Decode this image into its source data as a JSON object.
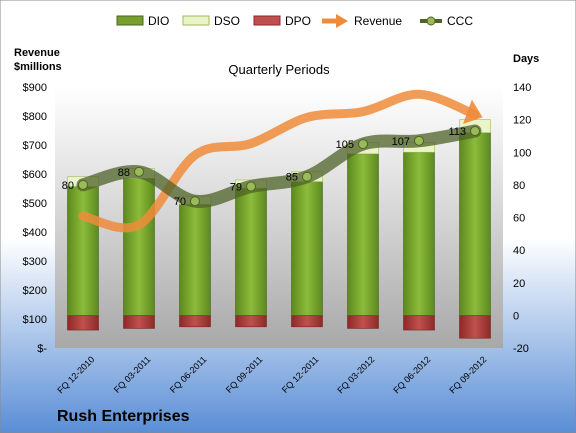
{
  "chart_data": {
    "type": "bar",
    "title": "Quarterly Periods",
    "company": "Rush Enterprises",
    "categories": [
      "FQ 12-2010",
      "FQ 03-2011",
      "FQ 06-2011",
      "FQ 09-2011",
      "FQ 12-2011",
      "FQ 03-2012",
      "FQ 06-2012",
      "FQ 09-2012"
    ],
    "left_axis": {
      "label_line1": "Revenue",
      "label_line2": "$millions",
      "ylim": [
        -20,
        140
      ],
      "ticks": [
        "$-",
        "$100",
        "$200",
        "$300",
        "$400",
        "$500",
        "$600",
        "$700",
        "$800",
        "$900"
      ]
    },
    "right_axis": {
      "label": "Days",
      "ylim": [
        -20,
        140
      ],
      "ticks": [
        -20,
        0,
        20,
        40,
        60,
        80,
        100,
        120,
        140
      ]
    },
    "series": [
      {
        "name": "DIO",
        "kind": "bar",
        "axis": "days",
        "color": "#76a02c",
        "values": [
          79,
          84,
          68,
          78,
          82,
          99,
          100,
          112
        ]
      },
      {
        "name": "DSO",
        "kind": "bar-stacked",
        "axis": "days",
        "color": "#ebf3c9",
        "values": [
          6,
          6,
          5,
          5,
          6,
          7,
          6,
          8
        ]
      },
      {
        "name": "DPO",
        "kind": "bar-negative",
        "axis": "days",
        "color": "#c0504d",
        "values": [
          -9,
          -8,
          -7,
          -7,
          -7,
          -8,
          -9,
          -14
        ]
      },
      {
        "name": "Revenue",
        "kind": "line-arrow",
        "axis": "revenue",
        "color": "#ee8c3a",
        "values": [
          455,
          425,
          665,
          705,
          795,
          815,
          875,
          805
        ]
      },
      {
        "name": "CCC",
        "kind": "line-markers",
        "axis": "days",
        "color": "#4f6228",
        "values": [
          80,
          88,
          70,
          79,
          85,
          105,
          107,
          113
        ]
      }
    ],
    "data_labels": [
      80,
      88,
      70,
      79,
      85,
      105,
      107,
      113
    ],
    "legend_position": "top",
    "grid": false
  }
}
